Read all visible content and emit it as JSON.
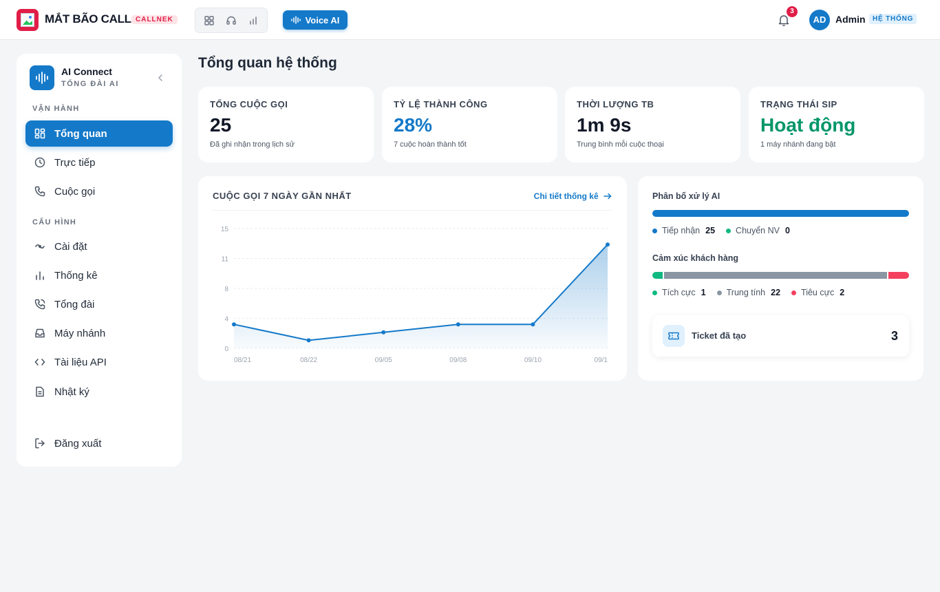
{
  "header": {
    "brand_name": "MẮT BÃO CALL",
    "brand_badge": "CALLNEK",
    "toolbar_icons": [
      "grid-icon",
      "headset-icon",
      "chart-icon"
    ],
    "voice_ai_label": "Voice AI",
    "notification_count": "3",
    "user_initials": "AD",
    "user_name": "Admin",
    "user_role": "HỆ THỐNG"
  },
  "sidebar": {
    "title": "AI Connect",
    "subtitle": "TỔNG ĐÀI AI",
    "sections": {
      "operations": "VẬN HÀNH",
      "configuration": "CẤU HÌNH"
    },
    "items": [
      {
        "label": "Tổng quan",
        "icon": "dashboard-icon",
        "active": true
      },
      {
        "label": "Trực tiếp",
        "icon": "clock-icon"
      },
      {
        "label": "Cuộc gọi",
        "icon": "phone-icon"
      },
      {
        "label": "Cài đặt",
        "icon": "settings-icon"
      },
      {
        "label": "Thống kê",
        "icon": "bar-chart-icon"
      },
      {
        "label": "Tổng đài",
        "icon": "phone-call-icon"
      },
      {
        "label": "Máy nhánh",
        "icon": "inbox-icon"
      },
      {
        "label": "Tài liệu API",
        "icon": "code-icon"
      },
      {
        "label": "Nhật ký",
        "icon": "document-icon"
      }
    ],
    "logout_label": "Đăng xuất"
  },
  "main": {
    "page_title": "Tổng quan hệ thống",
    "stats": [
      {
        "label": "TỔNG CUỘC GỌI",
        "value": "25",
        "sub": "Đã ghi nhận trong lịch sử",
        "color": "#111827"
      },
      {
        "label": "TỶ LỆ THÀNH CÔNG",
        "value": "28%",
        "sub": "7 cuộc hoàn thành tốt",
        "color": "#1479c9"
      },
      {
        "label": "THỜI LƯỢNG TB",
        "value": "1m 9s",
        "sub": "Trung bình mỗi cuộc thoại",
        "color": "#111827"
      },
      {
        "label": "TRẠNG THÁI SIP",
        "value": "Hoạt động",
        "sub": "1 máy nhánh đang bật",
        "color": "#059669"
      }
    ],
    "chart_card": {
      "title": "CUỘC GỌI 7 NGÀY GẦN NHẤT",
      "link_label": "Chi tiết thống kê"
    },
    "ai_card": {
      "distribution_title": "Phân bố xử lý AI",
      "distribution": [
        {
          "label": "Tiếp nhận",
          "value": "25",
          "color": "#1479c9"
        },
        {
          "label": "Chuyển NV",
          "value": "0",
          "color": "#10b981"
        }
      ],
      "sentiment_title": "Cảm xúc khách hàng",
      "sentiment": [
        {
          "label": "Tích cực",
          "value": "1",
          "color": "#10b981"
        },
        {
          "label": "Trung tính",
          "value": "22",
          "color": "#8a96a3"
        },
        {
          "label": "Tiêu cực",
          "value": "2",
          "color": "#f43f5e"
        }
      ],
      "ticket_label": "Ticket đã tạo",
      "ticket_value": "3"
    }
  },
  "chart_data": {
    "type": "area",
    "categories": [
      "08/21",
      "08/22",
      "09/05",
      "09/08",
      "09/10",
      "09/1"
    ],
    "x_positions": [
      0,
      1,
      2,
      3,
      4,
      5
    ],
    "points": [
      {
        "x": 0,
        "y": 3
      },
      {
        "x": 1,
        "y": 1
      },
      {
        "x": 2,
        "y": 2
      },
      {
        "x": 3,
        "y": 3
      },
      {
        "x": 4,
        "y": 3
      },
      {
        "x": 5,
        "y": 13
      }
    ],
    "yticks": [
      "15",
      "11",
      "8",
      "4",
      "0"
    ],
    "ylim": [
      0,
      15
    ],
    "grid": true,
    "color": "#1479c9"
  }
}
